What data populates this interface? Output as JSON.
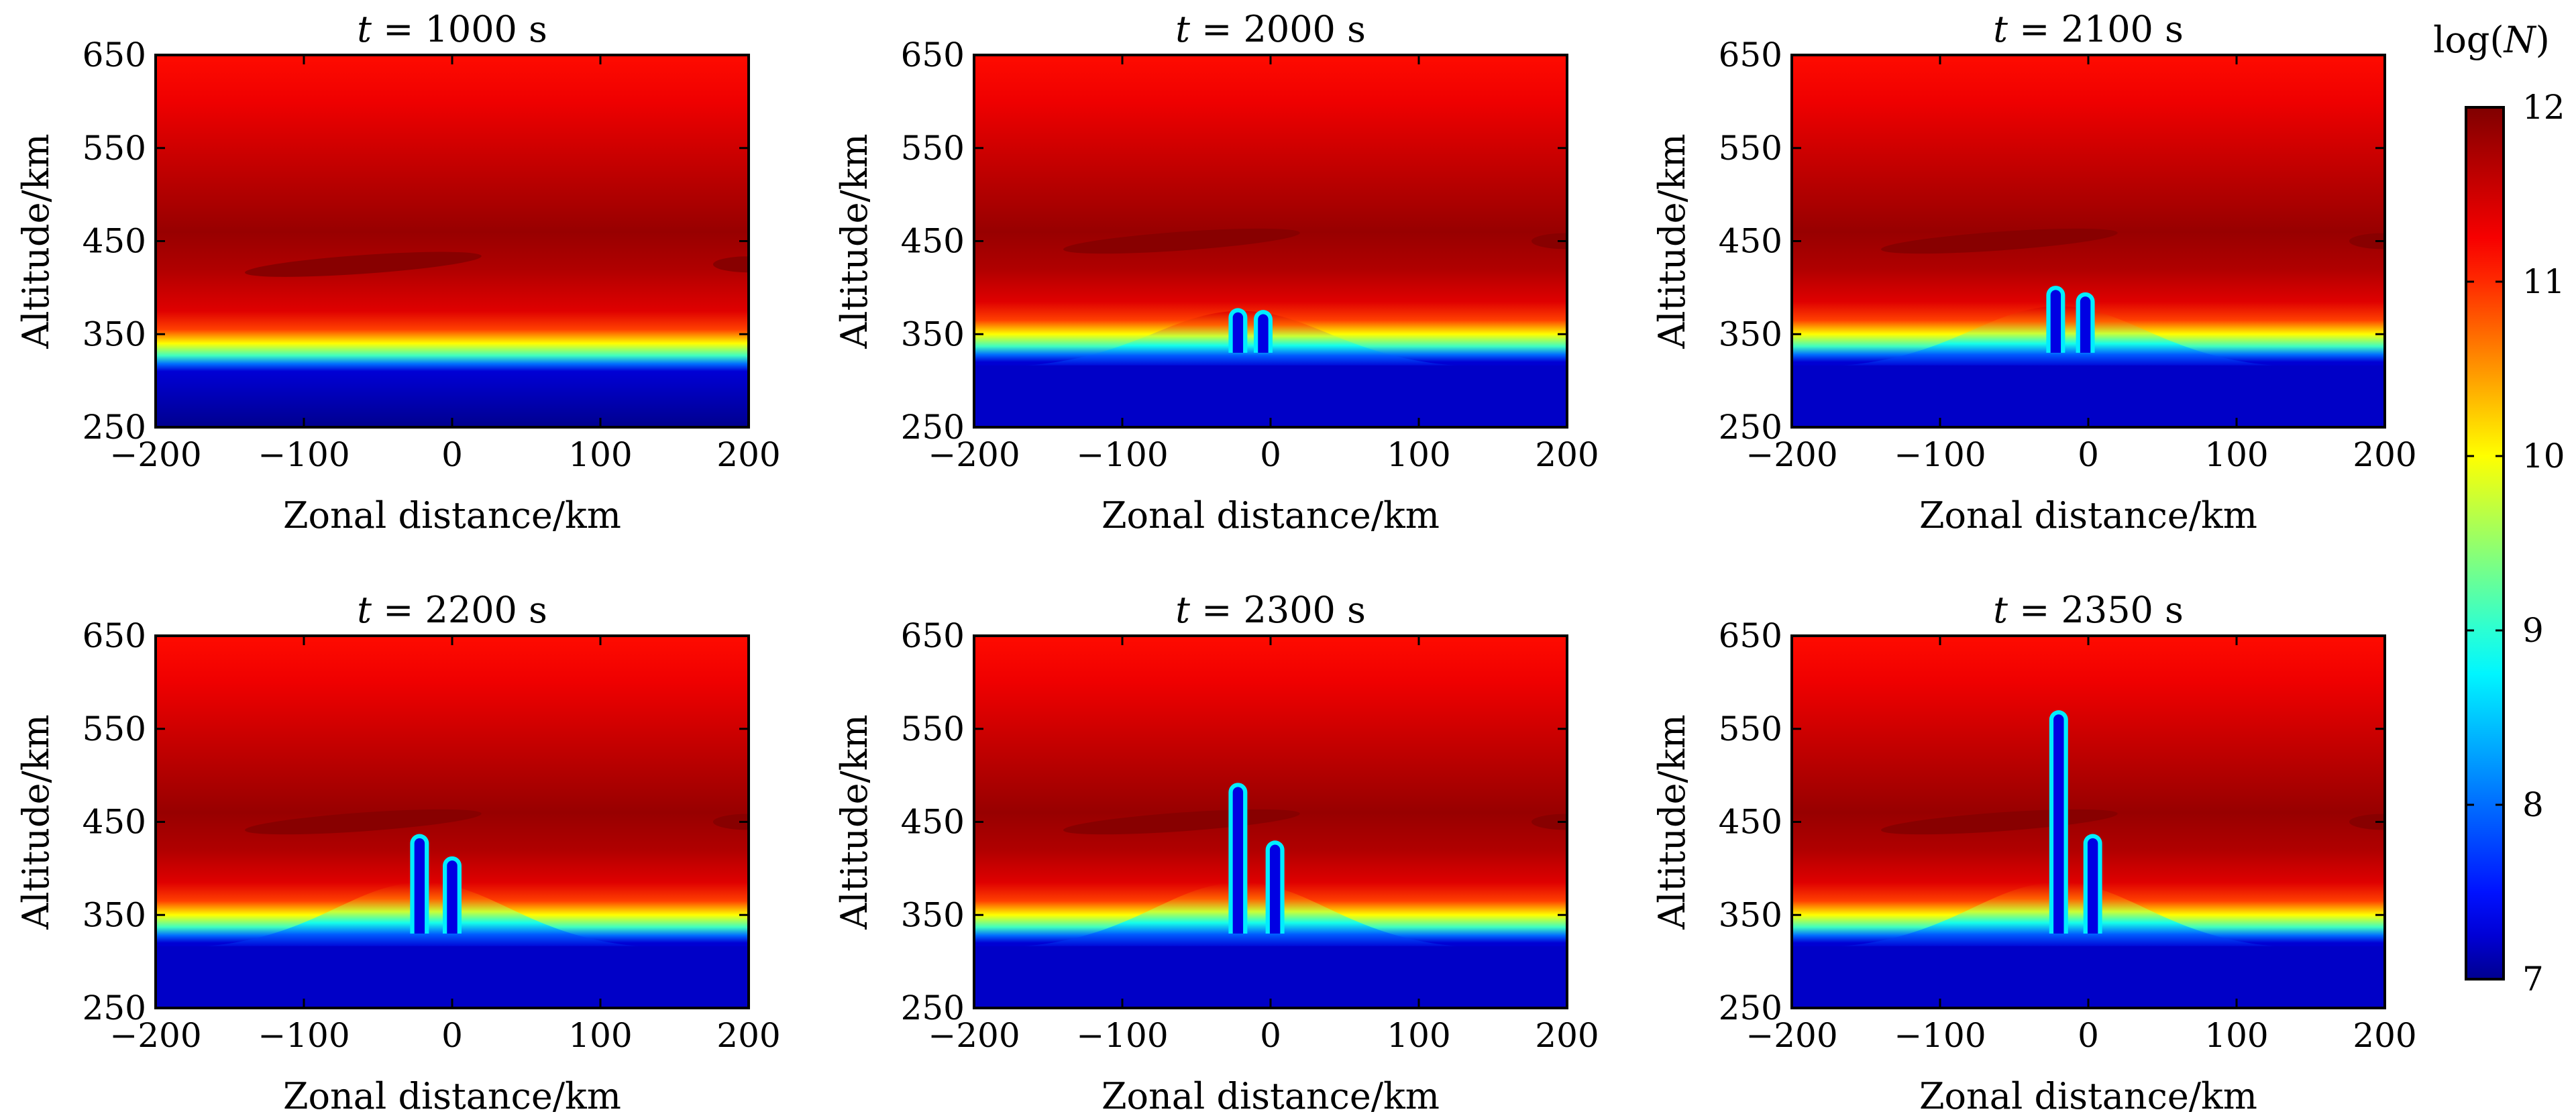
{
  "colors": {
    "stops": [
      "#00008f",
      "#0000ff",
      "#00ffff",
      "#ffff00",
      "#ff0000",
      "#800000"
    ],
    "positions": [
      0.0,
      0.08,
      0.36,
      0.6,
      0.84,
      1.0
    ],
    "axis": "#000000"
  },
  "chart_data": [
    {
      "type": "heatmap",
      "title": "t = 1000 s",
      "title_parts": [
        "t",
        " = 1000 s"
      ],
      "xlabel": "Zonal distance/km",
      "ylabel": "Altitude/km",
      "xlim": [
        -200,
        200
      ],
      "ylim": [
        250,
        650
      ],
      "xticks": [
        -200,
        -100,
        0,
        100,
        200
      ],
      "xtick_labels": [
        "−200",
        "−100",
        "0",
        "100",
        "200"
      ],
      "yticks": [
        250,
        350,
        450,
        550,
        650
      ],
      "ytick_labels": [
        "250",
        "350",
        "450",
        "550",
        "650"
      ],
      "field": {
        "variable": "log(N)",
        "background_edge_altitude_km": 315,
        "peak_density_altitude_km": 440,
        "bubbles": []
      }
    },
    {
      "type": "heatmap",
      "title": "t = 2000 s",
      "title_parts": [
        "t",
        " = 2000 s"
      ],
      "xlabel": "Zonal distance/km",
      "ylabel": "Altitude/km",
      "xlim": [
        -200,
        200
      ],
      "ylim": [
        250,
        650
      ],
      "xticks": [
        -200,
        -100,
        0,
        100,
        200
      ],
      "xtick_labels": [
        "−200",
        "−100",
        "0",
        "100",
        "200"
      ],
      "yticks": [
        250,
        350,
        450,
        550,
        650
      ],
      "ytick_labels": [
        "250",
        "350",
        "450",
        "550",
        "650"
      ],
      "field": {
        "variable": "log(N)",
        "background_edge_altitude_km": 325,
        "peak_density_altitude_km": 465,
        "uplift_center_km": -20,
        "uplift_height_km": 50,
        "bubbles": [
          {
            "x_km": -22,
            "top_km": 378
          },
          {
            "x_km": -5,
            "top_km": 376
          }
        ]
      }
    },
    {
      "type": "heatmap",
      "title": "t = 2100 s",
      "title_parts": [
        "t",
        " = 2100 s"
      ],
      "xlabel": "Zonal distance/km",
      "ylabel": "Altitude/km",
      "xlim": [
        -200,
        200
      ],
      "ylim": [
        250,
        650
      ],
      "xticks": [
        -200,
        -100,
        0,
        100,
        200
      ],
      "xtick_labels": [
        "−200",
        "−100",
        "0",
        "100",
        "200"
      ],
      "yticks": [
        250,
        350,
        450,
        550,
        650
      ],
      "ytick_labels": [
        "250",
        "350",
        "450",
        "550",
        "650"
      ],
      "field": {
        "variable": "log(N)",
        "background_edge_altitude_km": 325,
        "peak_density_altitude_km": 465,
        "uplift_center_km": -20,
        "uplift_height_km": 55,
        "bubbles": [
          {
            "x_km": -22,
            "top_km": 402
          },
          {
            "x_km": -2,
            "top_km": 395
          }
        ]
      }
    },
    {
      "type": "heatmap",
      "title": "t = 2200 s",
      "title_parts": [
        "t",
        " = 2200 s"
      ],
      "xlabel": "Zonal distance/km",
      "ylabel": "Altitude/km",
      "xlim": [
        -200,
        200
      ],
      "ylim": [
        250,
        650
      ],
      "xticks": [
        -200,
        -100,
        0,
        100,
        200
      ],
      "xtick_labels": [
        "−200",
        "−100",
        "0",
        "100",
        "200"
      ],
      "yticks": [
        250,
        350,
        450,
        550,
        650
      ],
      "ytick_labels": [
        "250",
        "350",
        "450",
        "550",
        "650"
      ],
      "field": {
        "variable": "log(N)",
        "background_edge_altitude_km": 325,
        "peak_density_altitude_km": 465,
        "uplift_center_km": -20,
        "uplift_height_km": 60,
        "bubbles": [
          {
            "x_km": -22,
            "top_km": 437
          },
          {
            "x_km": 0,
            "top_km": 413
          }
        ]
      }
    },
    {
      "type": "heatmap",
      "title": "t = 2300 s",
      "title_parts": [
        "t",
        " = 2300 s"
      ],
      "xlabel": "Zonal distance/km",
      "ylabel": "Altitude/km",
      "xlim": [
        -200,
        200
      ],
      "ylim": [
        250,
        650
      ],
      "xticks": [
        -200,
        -100,
        0,
        100,
        200
      ],
      "xtick_labels": [
        "−200",
        "−100",
        "0",
        "100",
        "200"
      ],
      "yticks": [
        250,
        350,
        450,
        550,
        650
      ],
      "ytick_labels": [
        "250",
        "350",
        "450",
        "550",
        "650"
      ],
      "field": {
        "variable": "log(N)",
        "background_edge_altitude_km": 325,
        "peak_density_altitude_km": 465,
        "uplift_center_km": -20,
        "uplift_height_km": 60,
        "bubbles": [
          {
            "x_km": -22,
            "top_km": 492
          },
          {
            "x_km": 3,
            "top_km": 430
          }
        ]
      }
    },
    {
      "type": "heatmap",
      "title": "t = 2350 s",
      "title_parts": [
        "t",
        " = 2350 s"
      ],
      "xlabel": "Zonal distance/km",
      "ylabel": "Altitude/km",
      "xlim": [
        -200,
        200
      ],
      "ylim": [
        250,
        650
      ],
      "xticks": [
        -200,
        -100,
        0,
        100,
        200
      ],
      "xtick_labels": [
        "−200",
        "−100",
        "0",
        "100",
        "200"
      ],
      "yticks": [
        250,
        350,
        450,
        550,
        650
      ],
      "ytick_labels": [
        "250",
        "350",
        "450",
        "550",
        "650"
      ],
      "field": {
        "variable": "log(N)",
        "background_edge_altitude_km": 325,
        "peak_density_altitude_km": 465,
        "uplift_center_km": -20,
        "uplift_height_km": 60,
        "bubbles": [
          {
            "x_km": -20,
            "top_km": 570
          },
          {
            "x_km": 3,
            "top_km": 437
          }
        ]
      }
    }
  ],
  "colorbar": {
    "label": "log(N)",
    "label_parts": [
      "log(",
      "N",
      ")"
    ],
    "min": 7,
    "max": 12,
    "ticks": [
      7,
      8,
      9,
      10,
      11,
      12
    ],
    "tick_labels": [
      "7",
      "8",
      "9",
      "10",
      "11",
      "12"
    ]
  }
}
